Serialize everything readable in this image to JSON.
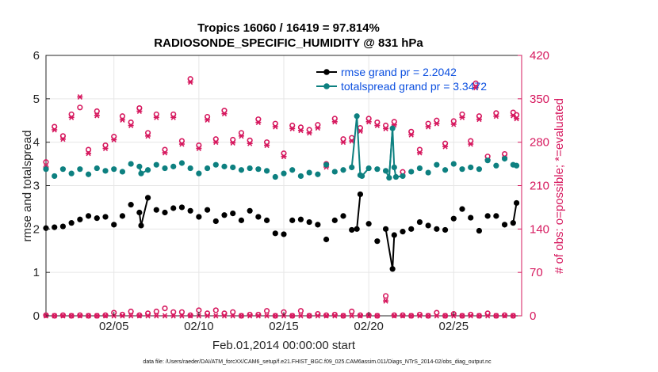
{
  "chart_data": {
    "type": "line",
    "title": "Tropics 16060 / 16419 = 97.814%",
    "subtitle": "RADIOSONDE_SPECIFIC_HUMIDITY @ 831 hPa",
    "xlabel": "Feb.01,2014 00:00:00 start",
    "ylabel": "rmse and totalspread",
    "ylabel_right": "# of obs: o=possible; *=evaluated",
    "footnote": "data file: /Users/raeder/DAI/ATM_forcXX/CAM6_setup/f.e21.FHIST_BGC.f09_025.CAM6assim.011/Diags_NTrS_2014-02/obs_diag_output.nc",
    "xlim": [
      1,
      29
    ],
    "ylim": [
      0,
      6
    ],
    "ylim_right": [
      0,
      420
    ],
    "x_ticks": [
      5,
      10,
      15,
      20,
      25
    ],
    "x_tick_labels": [
      "02/05",
      "02/10",
      "02/15",
      "02/20",
      "02/25"
    ],
    "y_ticks": [
      0,
      1,
      2,
      3,
      4,
      5,
      6
    ],
    "y_tick_labels": [
      "0",
      "1",
      "2",
      "3",
      "4",
      "5",
      "6"
    ],
    "y_right_ticks": [
      0,
      70,
      140,
      210,
      280,
      350,
      420
    ],
    "y_right_tick_labels": [
      "0",
      "70",
      "140",
      "210",
      "280",
      "350",
      "420"
    ],
    "grid": true,
    "legend_position": "top-right",
    "x": [
      1.0,
      1.5,
      2.0,
      2.5,
      3.0,
      3.5,
      4.0,
      4.5,
      5.0,
      5.5,
      6.0,
      6.5,
      7.0,
      7.5,
      8.0,
      8.5,
      9.0,
      9.5,
      10.0,
      10.5,
      11.0,
      11.5,
      12.0,
      12.5,
      13.0,
      13.5,
      14.0,
      14.5,
      15.0,
      15.5,
      16.0,
      16.5,
      17.0,
      17.5,
      18.0,
      18.5,
      19.0,
      19.5,
      20.0,
      20.5,
      21.0,
      21.5,
      22.0,
      22.5,
      23.0,
      23.5,
      24.0,
      24.5,
      25.0,
      25.5,
      26.0,
      26.5,
      27.0,
      27.5,
      28.0,
      28.5
    ],
    "series": [
      {
        "name": "rmse",
        "legend_label": "rmse grand pr = 2.2042",
        "color": "#000000",
        "marker": "filled-circle",
        "values": [
          2.02,
          2.04,
          2.06,
          2.14,
          2.22,
          2.3,
          2.25,
          2.28,
          2.1,
          2.3,
          2.56,
          2.38,
          2.72,
          2.44,
          2.38,
          2.48,
          2.5,
          2.42,
          2.28,
          2.44,
          2.18,
          2.32,
          2.36,
          2.2,
          2.42,
          2.28,
          2.2,
          1.9,
          1.88,
          2.2,
          2.22,
          2.16,
          2.1,
          1.76,
          2.2,
          2.3,
          1.98,
          2.8,
          2.12,
          1.72,
          2.0,
          1.86,
          1.94,
          2.0,
          2.16,
          2.08,
          2.0,
          1.98,
          2.24,
          2.46,
          2.26,
          1.96,
          2.3,
          2.3,
          2.1,
          2.14
        ],
        "extra_points": [
          {
            "x": 6.6,
            "y": 2.08
          },
          {
            "x": 19.3,
            "y": 2.0
          },
          {
            "x": 21.4,
            "y": 1.08
          },
          {
            "x": 28.7,
            "y": 2.6
          }
        ]
      },
      {
        "name": "totalspread",
        "legend_label": "totalspread grand pr = 3.3472",
        "color": "#0d8080",
        "marker": "filled-circle",
        "values": [
          3.38,
          3.22,
          3.38,
          3.28,
          3.38,
          3.26,
          3.4,
          3.34,
          3.38,
          3.32,
          3.5,
          3.44,
          3.36,
          3.48,
          3.4,
          3.44,
          3.52,
          3.4,
          3.28,
          3.4,
          3.48,
          3.44,
          3.42,
          3.36,
          3.4,
          3.38,
          3.34,
          3.2,
          3.28,
          3.36,
          3.22,
          3.3,
          3.26,
          3.48,
          3.32,
          3.36,
          3.42,
          3.24,
          3.4,
          3.38,
          3.34,
          3.42,
          3.22,
          3.32,
          3.4,
          3.3,
          3.48,
          3.36,
          3.5,
          3.38,
          3.42,
          3.38,
          3.58,
          3.46,
          3.62,
          3.48
        ],
        "extra_points": [
          {
            "x": 6.6,
            "y": 3.28
          },
          {
            "x": 19.3,
            "y": 4.6
          },
          {
            "x": 19.6,
            "y": 3.22
          },
          {
            "x": 21.2,
            "y": 3.18
          },
          {
            "x": 21.4,
            "y": 4.32
          },
          {
            "x": 21.6,
            "y": 3.2
          },
          {
            "x": 28.7,
            "y": 3.46
          }
        ]
      },
      {
        "name": "obs possible",
        "axis": "right",
        "color": "#d6185e",
        "marker": "open-circle",
        "values": [
          248,
          305,
          290,
          325,
          336,
          268,
          330,
          275,
          289,
          322,
          312,
          335,
          295,
          325,
          268,
          325,
          282,
          382,
          275,
          321,
          285,
          331,
          284,
          295,
          283,
          317,
          280,
          310,
          262,
          307,
          304,
          300,
          308,
          245,
          318,
          285,
          287,
          303,
          318,
          312,
          307,
          313,
          232,
          297,
          268,
          310,
          315,
          278,
          314,
          325,
          282,
          322,
          257,
          327,
          261,
          328
        ],
        "extra_values": [
          {
            "x": 28.7,
            "y": 324
          },
          {
            "x": 26.3,
            "y": 375
          }
        ],
        "near_zero_values": [
          1,
          0,
          1,
          0,
          1,
          0,
          0,
          1,
          5,
          2,
          7,
          1,
          4,
          7,
          12,
          6,
          6,
          1,
          9,
          4,
          9,
          4,
          6,
          0,
          2,
          2,
          8,
          0,
          6,
          0,
          8,
          0,
          3,
          1,
          2,
          0,
          7,
          1,
          1,
          0,
          32,
          1,
          1,
          0,
          2,
          0,
          5,
          0,
          3,
          0,
          2,
          0,
          4,
          0,
          1,
          0
        ]
      },
      {
        "name": "obs evaluated",
        "axis": "right",
        "color": "#d6185e",
        "marker": "asterisk",
        "values": [
          240,
          300,
          285,
          320,
          353,
          262,
          323,
          270,
          284,
          316,
          307,
          330,
          290,
          320,
          263,
          320,
          277,
          377,
          270,
          316,
          280,
          326,
          279,
          290,
          278,
          312,
          275,
          305,
          257,
          302,
          299,
          295,
          303,
          240,
          313,
          280,
          282,
          298,
          313,
          307,
          302,
          308,
          227,
          292,
          263,
          305,
          310,
          273,
          309,
          320,
          277,
          317,
          252,
          322,
          256,
          323
        ],
        "extra_values": [
          {
            "x": 28.7,
            "y": 318
          },
          {
            "x": 26.3,
            "y": 368
          }
        ],
        "near_zero_values": [
          0,
          0,
          0,
          0,
          0,
          0,
          0,
          0,
          0,
          0,
          0,
          0,
          0,
          0,
          0,
          0,
          0,
          0,
          0,
          0,
          0,
          0,
          0,
          0,
          0,
          0,
          0,
          0,
          0,
          0,
          0,
          0,
          0,
          0,
          0,
          0,
          0,
          0,
          0,
          0,
          24,
          0,
          0,
          0,
          0,
          0,
          0,
          0,
          0,
          0,
          0,
          0,
          0,
          0,
          0,
          0
        ]
      }
    ]
  }
}
